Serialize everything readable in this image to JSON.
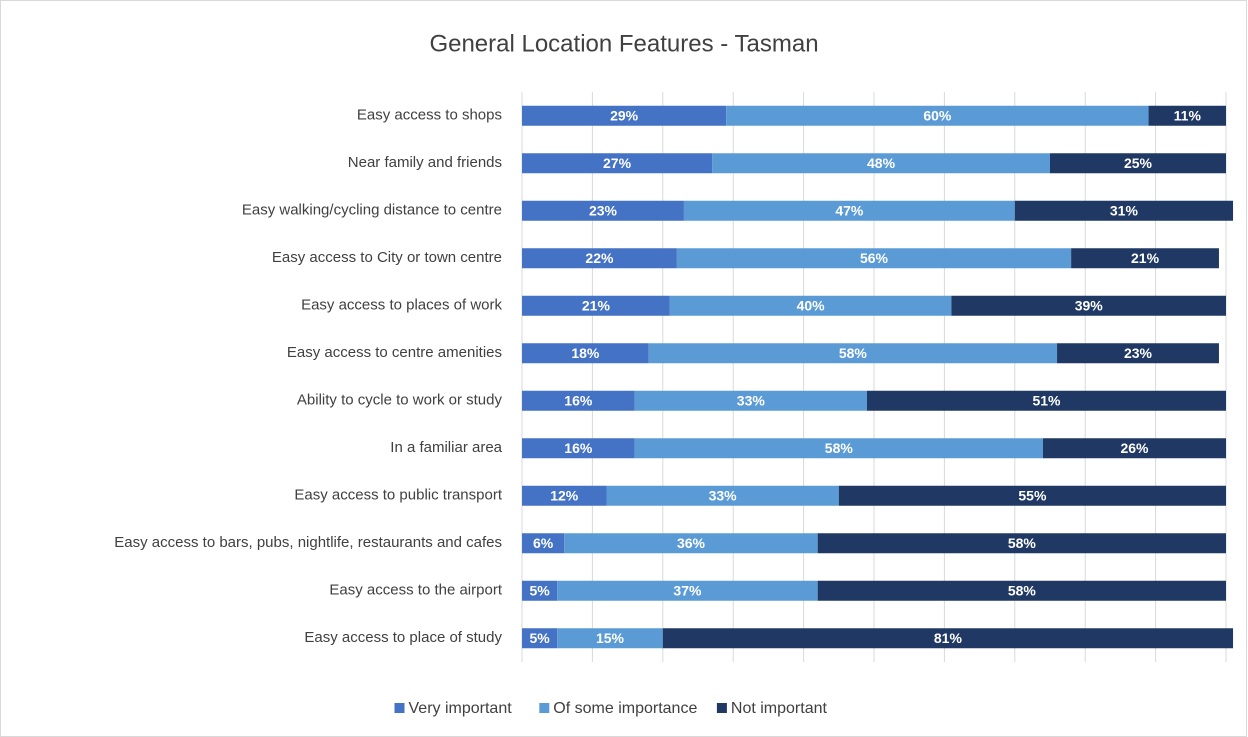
{
  "chart_data": {
    "type": "stacked_bar_horizontal",
    "title": "General Location Features - Tasman",
    "categories": [
      "Easy access to shops",
      "Near family and friends",
      "Easy walking/cycling distance to centre",
      "Easy access to City or town centre",
      "Easy access to places of work",
      "Easy access to centre amenities",
      "Ability to cycle to work or study",
      "In a familiar area",
      "Easy access to public transport",
      "Easy access to bars, pubs, nightlife, restaurants and cafes",
      "Easy access to the airport",
      "Easy access to place of study"
    ],
    "series": [
      {
        "name": "Very important",
        "color": "#4472c4",
        "values": [
          29,
          27,
          23,
          22,
          21,
          18,
          16,
          16,
          12,
          6,
          5,
          5
        ],
        "value_labels": [
          "29%",
          "27%",
          "23%",
          "22%",
          "21%",
          "18%",
          "16%",
          "16%",
          "12%",
          "6%",
          "5%",
          "5%"
        ]
      },
      {
        "name": "Of some importance",
        "color": "#5b9bd5",
        "values": [
          60,
          48,
          47,
          56,
          40,
          58,
          33,
          58,
          33,
          36,
          37,
          15
        ],
        "value_labels": [
          "60%",
          "48%",
          "47%",
          "56%",
          "40%",
          "58%",
          "33%",
          "58%",
          "33%",
          "36%",
          "37%",
          "15%"
        ]
      },
      {
        "name": "Not important",
        "color": "#203864",
        "values": [
          11,
          25,
          31,
          21,
          39,
          23,
          51,
          26,
          55,
          58,
          58,
          81
        ],
        "value_labels": [
          "11%",
          "25%",
          "31%",
          "21%",
          "39%",
          "23%",
          "51%",
          "26%",
          "55%",
          "58%",
          "58%",
          "81%"
        ]
      }
    ],
    "xlim": [
      0,
      100
    ],
    "xticks": [
      0,
      10,
      20,
      30,
      40,
      50,
      60,
      70,
      80,
      90,
      100
    ],
    "grid": true,
    "legend": "bottom"
  }
}
